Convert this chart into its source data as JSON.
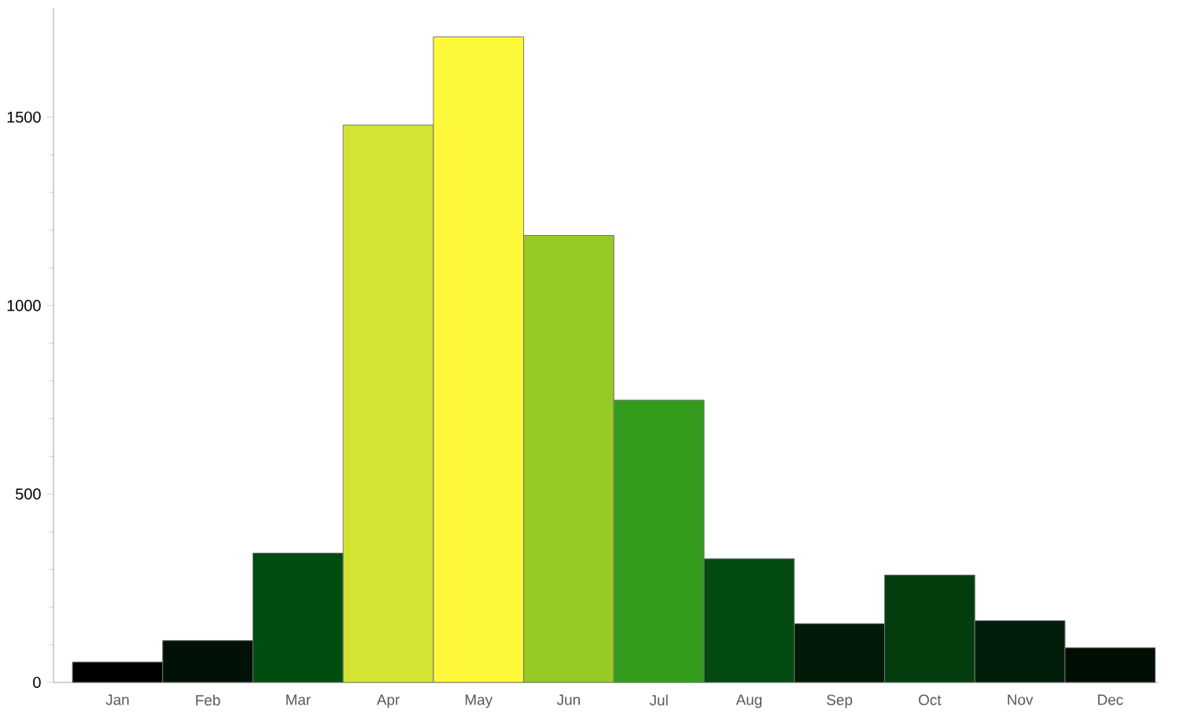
{
  "chart_data": {
    "type": "bar",
    "categories": [
      "Jan",
      "Feb",
      "Mar",
      "Apr",
      "May",
      "Jun",
      "Jul",
      "Aug",
      "Sep",
      "Oct",
      "Nov",
      "Dec"
    ],
    "values": [
      54,
      111,
      343,
      1479,
      1713,
      1186,
      749,
      328,
      156,
      285,
      164,
      92
    ],
    "colors": [
      "#000000",
      "#001208",
      "#004d10",
      "#d3e432",
      "#fdf93a",
      "#95c924",
      "#339c1d",
      "#034a10",
      "#001a08",
      "#033d0e",
      "#011d09",
      "#000e04"
    ],
    "ylim": [
      0,
      1790
    ],
    "yticks": [
      0,
      500,
      1000,
      1500
    ]
  }
}
